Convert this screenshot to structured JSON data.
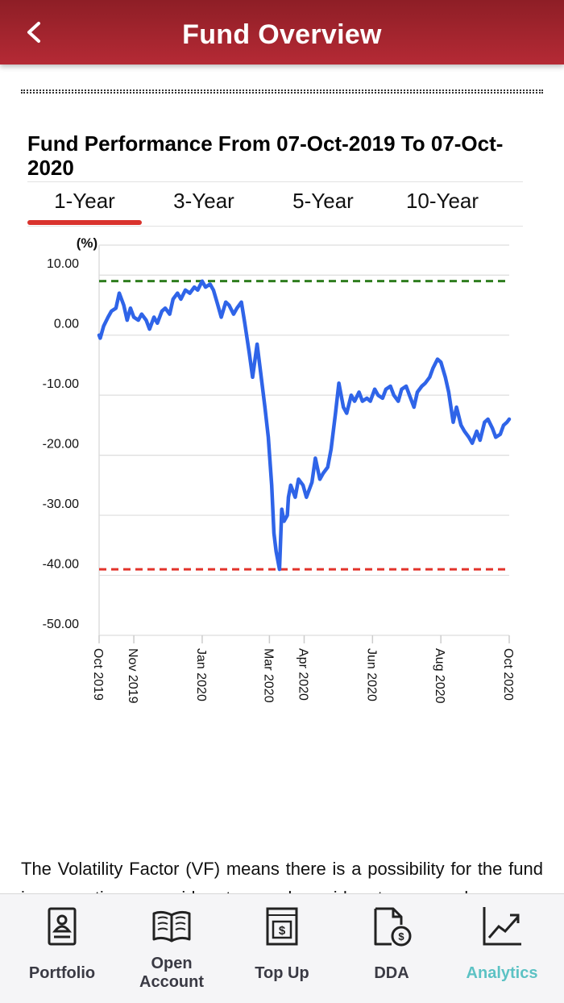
{
  "header": {
    "title": "Fund Overview",
    "back_icon": "back-arrow-icon"
  },
  "performance": {
    "title": "Fund Performance From 07-Oct-2019 To 07-Oct-2020",
    "tabs": [
      {
        "label": "1-Year",
        "active": true
      },
      {
        "label": "3-Year",
        "active": false
      },
      {
        "label": "5-Year",
        "active": false
      },
      {
        "label": "10-Year",
        "active": false
      }
    ]
  },
  "chart_data": {
    "type": "line",
    "ylabel": "(%)",
    "ylim": [
      -50,
      15
    ],
    "yticks": [
      "10.00",
      "0.00",
      "-10.00",
      "-20.00",
      "-30.00",
      "-40.00",
      "-50.00"
    ],
    "ytick_values": [
      10,
      0,
      -10,
      -20,
      -30,
      -40,
      -50
    ],
    "xticks": [
      "Oct 2019",
      "Nov 2019",
      "Jan 2020",
      "Mar 2020",
      "Apr 2020",
      "Jun 2020",
      "Aug 2020",
      "Oct 2020"
    ],
    "xtick_dates": [
      "2019-10-07",
      "2019-11-07",
      "2020-01-07",
      "2020-03-07",
      "2020-04-07",
      "2020-06-07",
      "2020-08-07",
      "2020-10-07"
    ],
    "xlim": [
      "2019-10-07",
      "2020-10-07"
    ],
    "grid": true,
    "reference_lines": [
      {
        "value": 9.0,
        "color": "#2e7d1e",
        "style": "dashed"
      },
      {
        "value": -39.0,
        "color": "#e2332b",
        "style": "dashed"
      }
    ],
    "series_color": "#2f64e8",
    "series": [
      {
        "x": [
          "2019-10-07",
          "2019-10-08",
          "2019-10-11",
          "2019-10-15",
          "2019-10-18",
          "2019-10-22",
          "2019-10-25",
          "2019-10-29",
          "2019-11-01",
          "2019-11-04",
          "2019-11-07",
          "2019-11-11",
          "2019-11-14",
          "2019-11-18",
          "2019-11-21",
          "2019-11-25",
          "2019-11-28",
          "2019-12-02",
          "2019-12-05",
          "2019-12-09",
          "2019-12-12",
          "2019-12-16",
          "2019-12-19",
          "2019-12-23",
          "2019-12-27",
          "2019-12-31",
          "2020-01-03",
          "2020-01-07",
          "2020-01-10",
          "2020-01-14",
          "2020-01-17",
          "2020-01-21",
          "2020-01-24",
          "2020-01-28",
          "2020-01-31",
          "2020-02-04",
          "2020-02-07",
          "2020-02-11",
          "2020-02-14",
          "2020-02-18",
          "2020-02-21",
          "2020-02-25",
          "2020-02-28",
          "2020-03-03",
          "2020-03-06",
          "2020-03-09",
          "2020-03-11",
          "2020-03-13",
          "2020-03-16",
          "2020-03-18",
          "2020-03-20",
          "2020-03-23",
          "2020-03-24",
          "2020-03-26",
          "2020-03-30",
          "2020-04-02",
          "2020-04-06",
          "2020-04-09",
          "2020-04-14",
          "2020-04-17",
          "2020-04-21",
          "2020-04-24",
          "2020-04-28",
          "2020-05-01",
          "2020-05-05",
          "2020-05-08",
          "2020-05-12",
          "2020-05-15",
          "2020-05-19",
          "2020-05-22",
          "2020-05-26",
          "2020-05-29",
          "2020-06-02",
          "2020-06-05",
          "2020-06-09",
          "2020-06-12",
          "2020-06-16",
          "2020-06-19",
          "2020-06-23",
          "2020-06-26",
          "2020-06-30",
          "2020-07-03",
          "2020-07-07",
          "2020-07-10",
          "2020-07-14",
          "2020-07-17",
          "2020-07-21",
          "2020-07-24",
          "2020-07-28",
          "2020-07-31",
          "2020-08-04",
          "2020-08-07",
          "2020-08-11",
          "2020-08-14",
          "2020-08-18",
          "2020-08-21",
          "2020-08-25",
          "2020-08-28",
          "2020-09-01",
          "2020-09-04",
          "2020-09-08",
          "2020-09-11",
          "2020-09-15",
          "2020-09-18",
          "2020-09-22",
          "2020-09-25",
          "2020-09-29",
          "2020-10-02",
          "2020-10-05",
          "2020-10-07"
        ],
        "values": [
          0.0,
          -0.5,
          1.5,
          3.0,
          4.0,
          4.5,
          7.0,
          5.0,
          2.5,
          4.5,
          3.0,
          2.5,
          3.5,
          2.5,
          1.0,
          3.0,
          2.0,
          4.0,
          4.5,
          3.5,
          6.0,
          7.0,
          6.0,
          7.5,
          7.0,
          8.0,
          7.5,
          9.0,
          8.0,
          8.5,
          7.5,
          5.0,
          3.0,
          5.5,
          5.0,
          3.5,
          4.5,
          5.5,
          2.0,
          -3.0,
          -7.0,
          -1.5,
          -6.0,
          -12.0,
          -17.0,
          -25.0,
          -33.0,
          -36.0,
          -39.0,
          -29.0,
          -31.0,
          -30.0,
          -27.0,
          -25.0,
          -27.0,
          -24.0,
          -25.0,
          -27.0,
          -24.5,
          -20.5,
          -24.0,
          -23.0,
          -22.0,
          -19.0,
          -13.0,
          -8.0,
          -12.0,
          -13.0,
          -10.0,
          -11.0,
          -9.5,
          -11.0,
          -10.5,
          -11.0,
          -9.0,
          -10.0,
          -10.5,
          -9.0,
          -8.5,
          -10.0,
          -11.0,
          -9.0,
          -8.5,
          -10.0,
          -12.0,
          -9.5,
          -8.5,
          -8.0,
          -7.0,
          -5.5,
          -4.0,
          -4.5,
          -7.0,
          -9.5,
          -14.5,
          -12.0,
          -15.0,
          -16.0,
          -17.0,
          -18.0,
          -16.0,
          -17.5,
          -14.5,
          -14.0,
          -15.5,
          -17.0,
          -16.5,
          -15.0,
          -14.5,
          -14.0
        ]
      }
    ]
  },
  "description": {
    "text": "The Volatility Factor (VF) means there is a possibility for the fund in generating an upside return or downside return around"
  },
  "bottom_nav": [
    {
      "label": "Portfolio",
      "icon": "portfolio-icon",
      "active": false
    },
    {
      "label": "Open Account",
      "label_line1": "Open",
      "label_line2": "Account",
      "icon": "open-book-icon",
      "active": false
    },
    {
      "label": "Top Up",
      "icon": "top-up-icon",
      "active": false
    },
    {
      "label": "DDA",
      "icon": "dda-icon",
      "active": false
    },
    {
      "label": "Analytics",
      "icon": "analytics-icon",
      "active": true
    }
  ]
}
